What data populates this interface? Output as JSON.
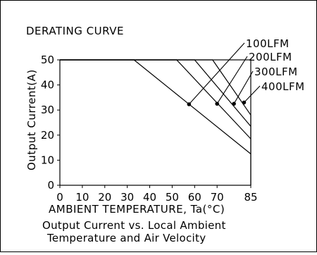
{
  "chart_data": {
    "type": "line",
    "title": "DERATING CURVE",
    "xlabel": "AMBIENT TEMPERATURE, Ta(°C)",
    "ylabel": "Output Current(A)",
    "caption": [
      "Output Current vs. Local Ambient",
      "Temperature and Air Velocity"
    ],
    "xlim": [
      0,
      85
    ],
    "ylim": [
      0,
      50
    ],
    "x_ticks": [
      0,
      10,
      20,
      30,
      40,
      50,
      60,
      70,
      85
    ],
    "y_ticks": [
      0,
      10,
      20,
      30,
      40,
      50
    ],
    "grid": false,
    "series": [
      {
        "name": "100LFM",
        "x": [
          0,
          33,
          85
        ],
        "y": [
          50,
          50,
          12.5
        ],
        "marker": {
          "x": 57.5,
          "y": 32.3
        }
      },
      {
        "name": "200LFM",
        "x": [
          0,
          52,
          85
        ],
        "y": [
          50,
          50,
          18.5
        ],
        "marker": {
          "x": 70,
          "y": 32.5
        }
      },
      {
        "name": "300LFM",
        "x": [
          0,
          60,
          85
        ],
        "y": [
          50,
          50,
          23.5
        ],
        "marker": {
          "x": 77.5,
          "y": 32.5
        }
      },
      {
        "name": "400LFM",
        "x": [
          0,
          68,
          85
        ],
        "y": [
          50,
          50,
          28
        ],
        "marker": {
          "x": 82,
          "y": 33
        }
      }
    ]
  }
}
